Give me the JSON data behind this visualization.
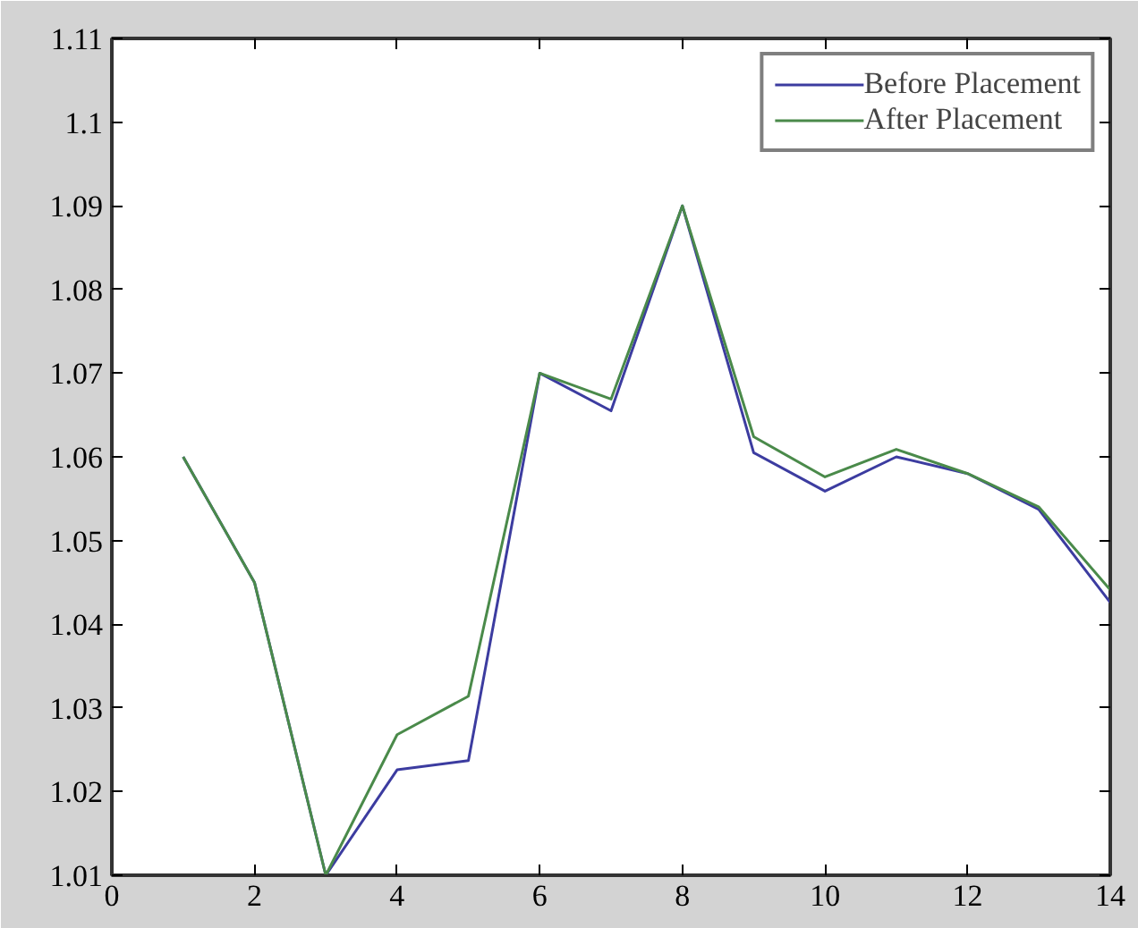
{
  "chart_data": {
    "type": "line",
    "x": [
      1,
      2,
      3,
      4,
      5,
      6,
      7,
      8,
      9,
      10,
      11,
      12,
      13,
      14
    ],
    "series": [
      {
        "name": "Before Placement",
        "color": "#3c3ca0",
        "values": [
          1.06,
          1.045,
          1.01,
          1.0226,
          1.0237,
          1.07,
          1.0655,
          1.09,
          1.0605,
          1.0559,
          1.06,
          1.058,
          1.0537,
          1.0426
        ]
      },
      {
        "name": "After Placement",
        "color": "#4a8a4a",
        "values": [
          1.06,
          1.045,
          1.01,
          1.0268,
          1.0314,
          1.07,
          1.0669,
          1.09,
          1.0624,
          1.0576,
          1.0609,
          1.058,
          1.054,
          1.0441
        ]
      }
    ],
    "xlim": [
      0,
      14
    ],
    "xticks": [
      0,
      2,
      4,
      6,
      8,
      10,
      12,
      14
    ],
    "ylim": [
      1.01,
      1.11
    ],
    "yticks": [
      1.01,
      1.02,
      1.03,
      1.04,
      1.05,
      1.06,
      1.07,
      1.08,
      1.09,
      1.1,
      1.11
    ],
    "grid": false,
    "legend": "top right",
    "marker": "none",
    "line_style": "solid"
  }
}
